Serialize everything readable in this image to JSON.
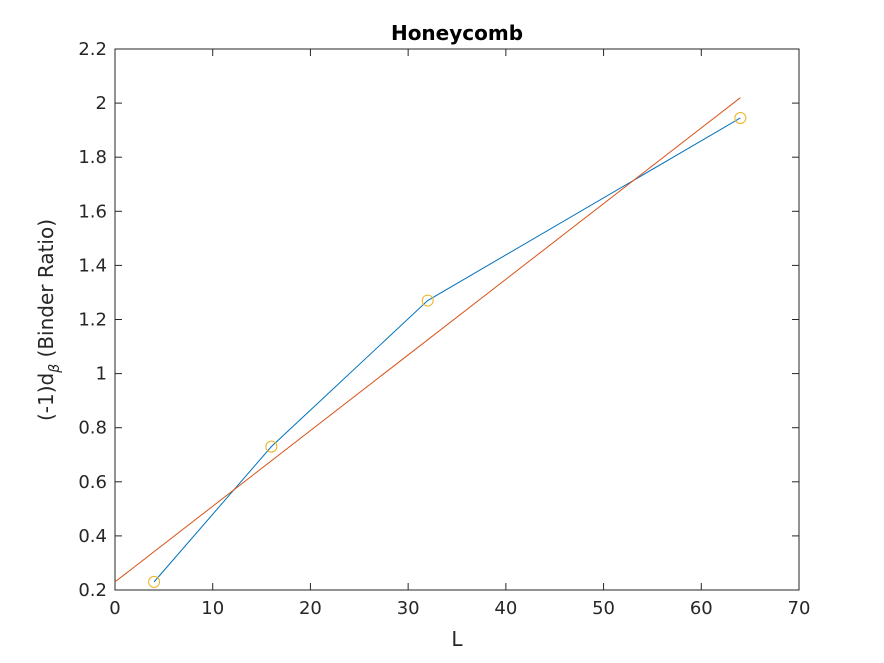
{
  "chart_data": {
    "type": "line",
    "title": "Honeycomb",
    "xlabel": "L",
    "ylabel": "(-1)d",
    "ylabel_sub": "β",
    "ylabel_suffix": " (Binder Ratio)",
    "xlim": [
      0,
      70
    ],
    "ylim": [
      0.2,
      2.2
    ],
    "xticks": [
      0,
      10,
      20,
      30,
      40,
      50,
      60,
      70
    ],
    "yticks": [
      0.2,
      0.4,
      0.6,
      0.8,
      1,
      1.2,
      1.4,
      1.6,
      1.8,
      2,
      2.2
    ],
    "grid": false,
    "series": [
      {
        "type": "line",
        "color": "#0072BD",
        "x": [
          4,
          16,
          32,
          64
        ],
        "y": [
          0.23,
          0.73,
          1.27,
          1.945
        ]
      },
      {
        "type": "line",
        "color": "#D95319",
        "x": [
          0,
          64
        ],
        "y": [
          0.23,
          2.02
        ]
      },
      {
        "type": "scatter",
        "marker": "circle",
        "color": "#EDB120",
        "x": [
          4,
          16,
          32,
          64
        ],
        "y": [
          0.23,
          0.73,
          1.27,
          1.945
        ]
      }
    ]
  }
}
